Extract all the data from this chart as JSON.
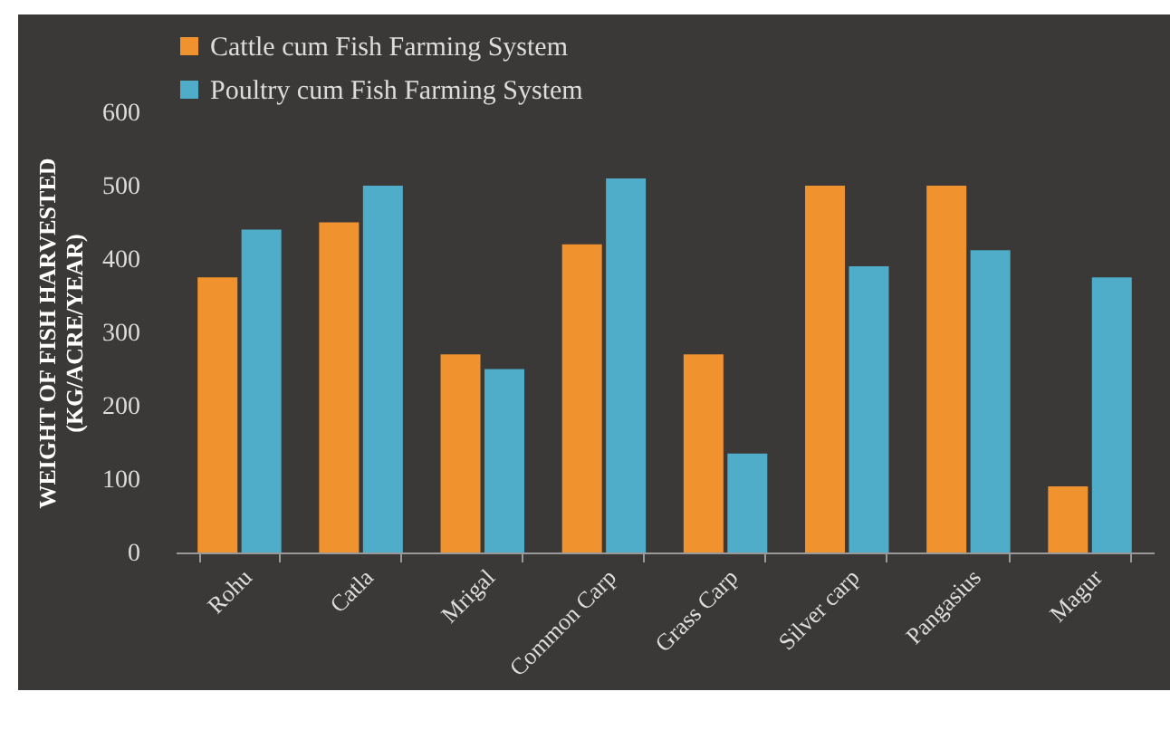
{
  "chart_data": {
    "type": "bar",
    "ylabel": "WEIGHT OF FISH HARVESTED\n(KG/ACRE/YEAR)",
    "categories": [
      "Rohu",
      "Catla",
      "Mrigal",
      "Common Carp",
      "Grass Carp",
      "Silver carp",
      "Pangasius",
      "Magur"
    ],
    "series": [
      {
        "name": "Cattle cum Fish Farming System",
        "color": "#f0922e",
        "values": [
          375,
          450,
          270,
          420,
          270,
          500,
          500,
          90
        ]
      },
      {
        "name": "Poultry cum Fish Farming System",
        "color": "#4fadc9",
        "values": [
          440,
          500,
          250,
          510,
          135,
          390,
          412,
          375
        ]
      }
    ],
    "ylim": [
      0,
      600
    ],
    "yticks": [
      0,
      100,
      200,
      300,
      400,
      500,
      600
    ],
    "grid": false,
    "legend": "top"
  }
}
